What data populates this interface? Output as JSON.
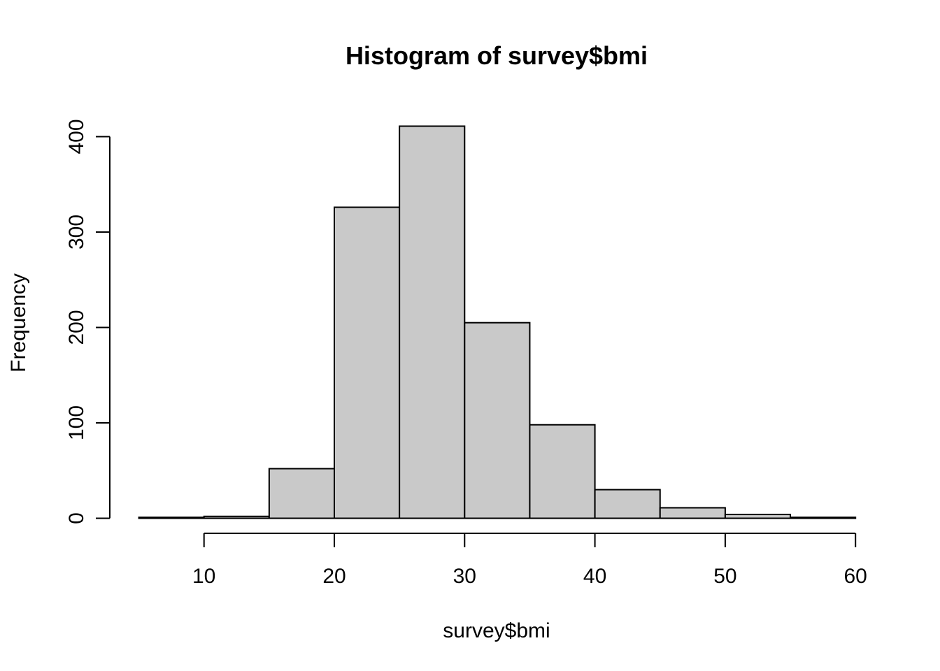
{
  "chart_data": {
    "type": "bar",
    "title": "Histogram of survey$bmi",
    "xlabel": "survey$bmi",
    "ylabel": "Frequency",
    "bins": [
      {
        "start": 5,
        "end": 10,
        "count": 1
      },
      {
        "start": 10,
        "end": 15,
        "count": 2
      },
      {
        "start": 15,
        "end": 20,
        "count": 52
      },
      {
        "start": 20,
        "end": 25,
        "count": 326
      },
      {
        "start": 25,
        "end": 30,
        "count": 411
      },
      {
        "start": 30,
        "end": 35,
        "count": 205
      },
      {
        "start": 35,
        "end": 40,
        "count": 98
      },
      {
        "start": 40,
        "end": 45,
        "count": 30
      },
      {
        "start": 45,
        "end": 50,
        "count": 11
      },
      {
        "start": 50,
        "end": 55,
        "count": 4
      },
      {
        "start": 55,
        "end": 60,
        "count": 1
      }
    ],
    "xlim": [
      5,
      60
    ],
    "ylim": [
      0,
      411
    ],
    "x_ticks": [
      10,
      20,
      30,
      40,
      50,
      60
    ],
    "y_ticks": [
      0,
      100,
      200,
      300,
      400
    ],
    "x_tick_labels": [
      "10",
      "20",
      "30",
      "40",
      "50",
      "60"
    ],
    "y_tick_labels": [
      "0",
      "100",
      "200",
      "300",
      "400"
    ],
    "bar_color": "#c9c9c9",
    "edge_color": "#000000",
    "grid": false,
    "legend": "none"
  }
}
